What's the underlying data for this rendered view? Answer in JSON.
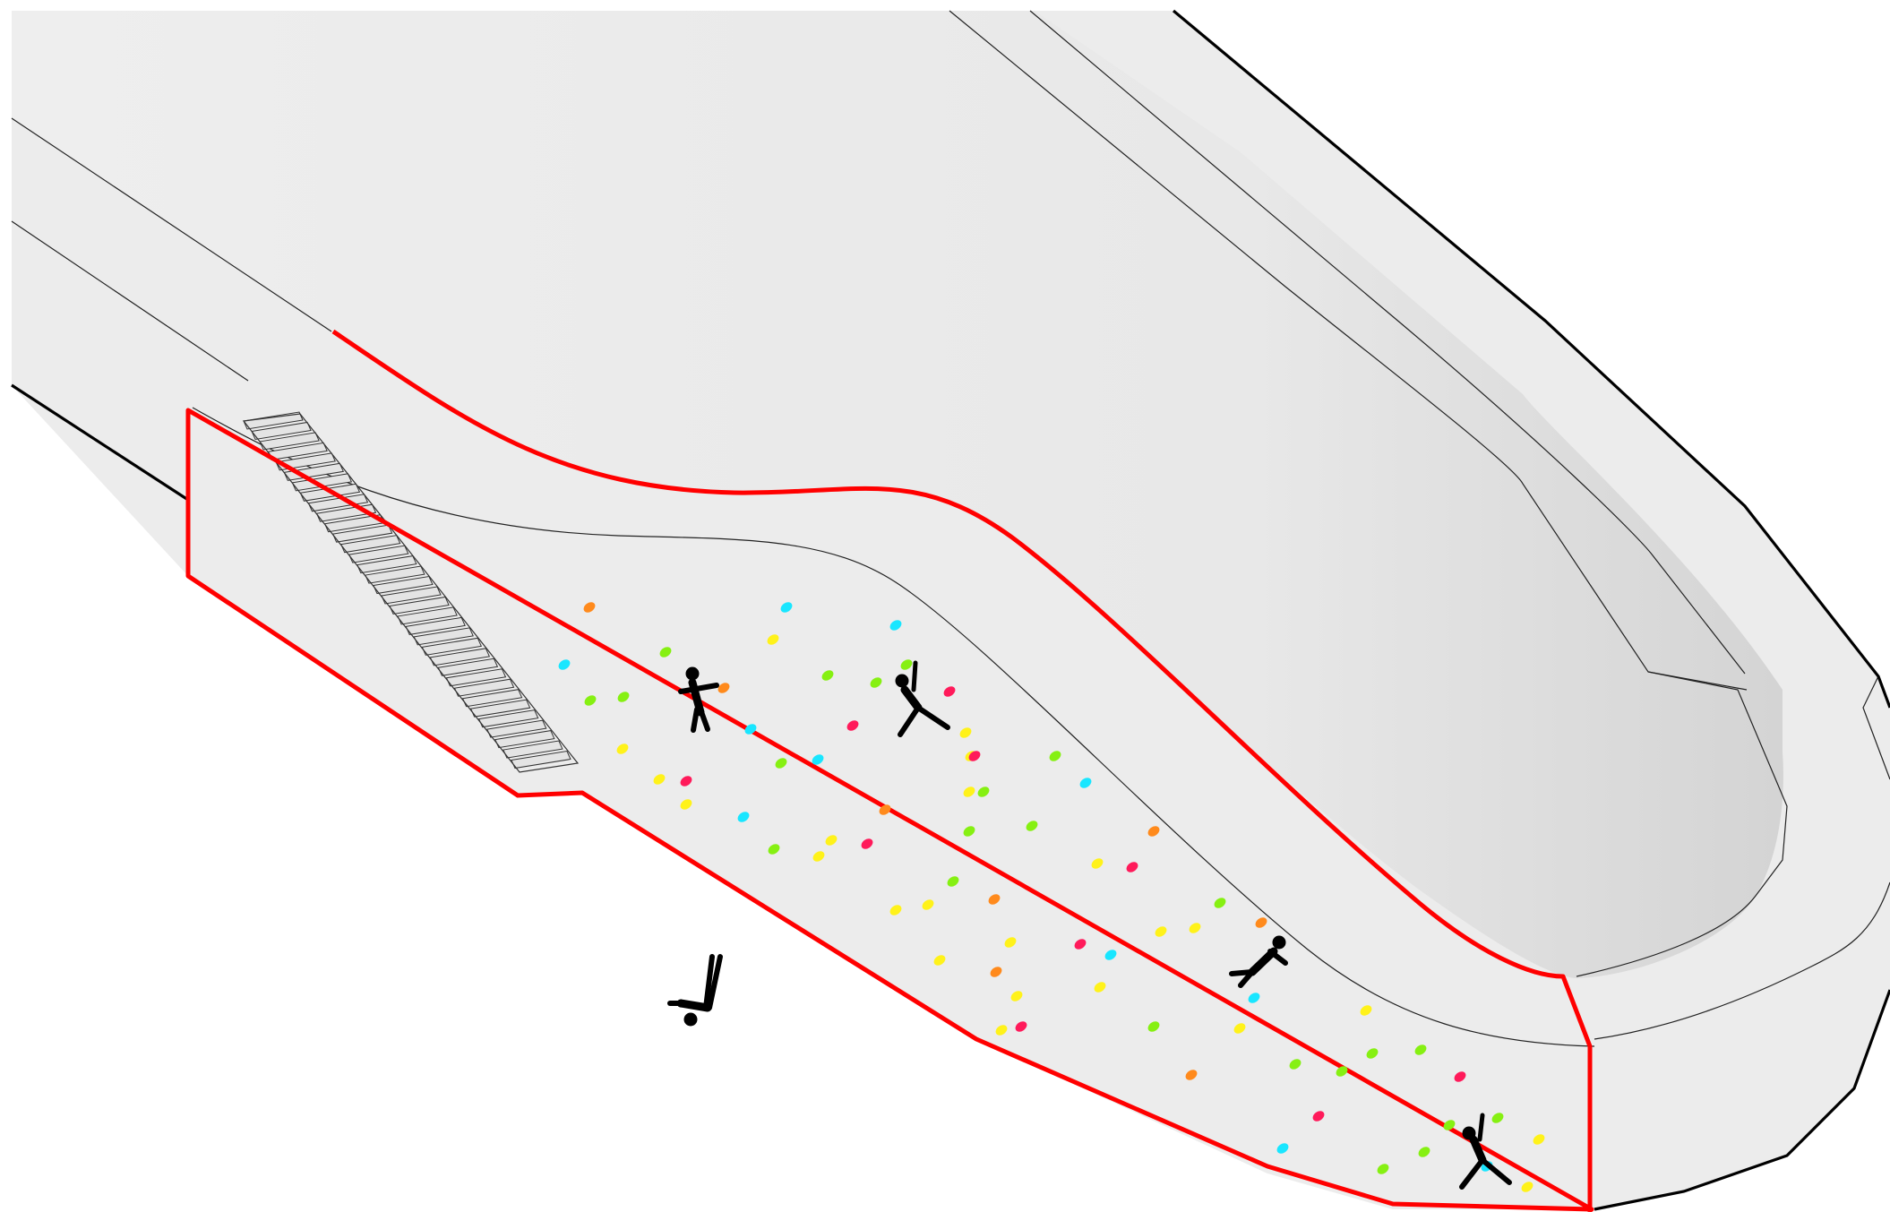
{
  "diagram": {
    "colors": {
      "background": "#ffffff",
      "wall_fill": "#ececec",
      "wall_fill_light": "#f0f0f0",
      "outline": "#000000",
      "highlight": "#ff0000",
      "stair_fill": "#e4e4e4",
      "figure": "#000000"
    },
    "hold_colors": {
      "orange": "#ff8a1c",
      "cyan": "#19e6ff",
      "green": "#86f012",
      "yellow": "#fff21a",
      "red": "#ff1a5a"
    },
    "climbers": [
      {
        "pose": "standing-arm-out"
      },
      {
        "pose": "reaching-up"
      },
      {
        "pose": "leaning"
      },
      {
        "pose": "fallen"
      },
      {
        "pose": "reaching-up"
      }
    ]
  }
}
